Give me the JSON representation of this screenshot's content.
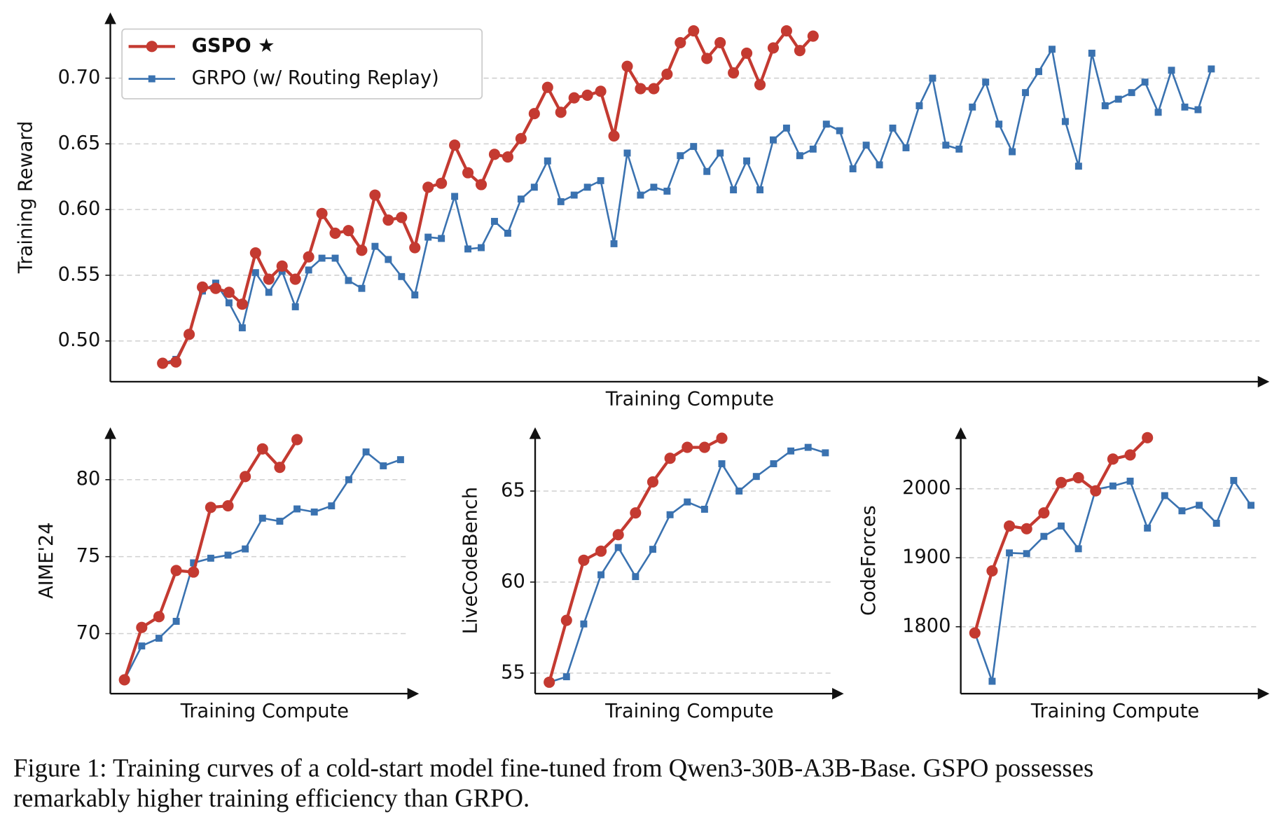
{
  "chart_data": [
    {
      "type": "line",
      "x_label": "Training Compute",
      "y_label": "Training Reward",
      "grid": true,
      "legend": "upper left",
      "ylim": [
        0.469,
        0.75
      ],
      "yticks": [
        {
          "value": 0.5,
          "label": "0.50"
        },
        {
          "value": 0.55,
          "label": "0.55"
        },
        {
          "value": 0.6,
          "label": "0.60"
        },
        {
          "value": 0.65,
          "label": "0.65"
        },
        {
          "value": 0.7,
          "label": "0.70"
        }
      ],
      "series": [
        {
          "name": "GSPO ★",
          "color": "#c43a31",
          "marker": "circle",
          "values": [
            0.483,
            0.484,
            0.505,
            0.541,
            0.54,
            0.537,
            0.528,
            0.567,
            0.547,
            0.557,
            0.547,
            0.564,
            0.597,
            0.582,
            0.584,
            0.569,
            0.611,
            0.592,
            0.594,
            0.571,
            0.617,
            0.62,
            0.649,
            0.628,
            0.619,
            0.642,
            0.64,
            0.654,
            0.673,
            0.693,
            0.674,
            0.685,
            0.687,
            0.69,
            0.656,
            0.709,
            0.692,
            0.692,
            0.703,
            0.727,
            0.736,
            0.715,
            0.727,
            0.704,
            0.719,
            0.695,
            0.723,
            0.736,
            0.721,
            0.732
          ]
        },
        {
          "name": "GRPO (w/ Routing Replay)",
          "color": "#3a72b0",
          "marker": "square",
          "values": [
            0.483,
            0.486,
            0.505,
            0.538,
            0.544,
            0.529,
            0.51,
            0.552,
            0.537,
            0.553,
            0.526,
            0.554,
            0.563,
            0.563,
            0.546,
            0.54,
            0.572,
            0.562,
            0.549,
            0.535,
            0.579,
            0.578,
            0.61,
            0.57,
            0.571,
            0.591,
            0.582,
            0.608,
            0.617,
            0.637,
            0.606,
            0.611,
            0.617,
            0.622,
            0.574,
            0.643,
            0.611,
            0.617,
            0.614,
            0.641,
            0.648,
            0.629,
            0.643,
            0.615,
            0.637,
            0.615,
            0.653,
            0.662,
            0.641,
            0.646,
            0.665,
            0.66,
            0.631,
            0.649,
            0.634,
            0.662,
            0.647,
            0.679,
            0.7,
            0.649,
            0.646,
            0.678,
            0.697,
            0.665,
            0.644,
            0.689,
            0.705,
            0.722,
            0.667,
            0.633,
            0.719,
            0.679,
            0.684,
            0.689,
            0.697,
            0.674,
            0.706,
            0.678,
            0.676,
            0.707
          ]
        }
      ]
    },
    {
      "type": "line",
      "x_label": "Training Compute",
      "y_label": "AIME'24",
      "grid": true,
      "ylim": [
        66.1,
        83.4
      ],
      "yticks": [
        70,
        75,
        80
      ],
      "series": [
        {
          "color": "#c43a31",
          "marker": "circle",
          "values": [
            67.0,
            70.4,
            71.1,
            74.1,
            74.0,
            78.2,
            78.3,
            80.2,
            82.0,
            80.8,
            82.6
          ]
        },
        {
          "color": "#3a72b0",
          "marker": "square",
          "values": [
            67.0,
            69.2,
            69.7,
            70.8,
            74.6,
            74.9,
            75.1,
            75.5,
            77.5,
            77.3,
            78.1,
            77.9,
            78.3,
            80.0,
            81.8,
            80.9,
            81.3
          ]
        }
      ]
    },
    {
      "type": "line",
      "x_label": "Training Compute",
      "y_label": "LiveCodeBench",
      "grid": true,
      "ylim": [
        53.87,
        68.5
      ],
      "yticks": [
        55,
        60,
        65
      ],
      "series": [
        {
          "color": "#c43a31",
          "marker": "circle",
          "values": [
            54.5,
            57.9,
            61.2,
            61.7,
            62.6,
            63.8,
            65.5,
            66.8,
            67.4,
            67.4,
            67.9
          ]
        },
        {
          "color": "#3a72b0",
          "marker": "square",
          "values": [
            54.5,
            54.8,
            57.7,
            60.4,
            61.9,
            60.3,
            61.8,
            63.7,
            64.4,
            64.0,
            66.5,
            65.0,
            65.8,
            66.5,
            67.2,
            67.4,
            67.1
          ]
        }
      ]
    },
    {
      "type": "line",
      "x_label": "Training Compute",
      "y_label": "CodeForces",
      "grid": true,
      "ylim": [
        1703,
        2089
      ],
      "yticks": [
        1800,
        1900,
        2000
      ],
      "series": [
        {
          "color": "#c43a31",
          "marker": "circle",
          "values": [
            1791,
            1881,
            1946,
            1942,
            1965,
            2009,
            2016,
            1997,
            2043,
            2049,
            2074
          ]
        },
        {
          "color": "#3a72b0",
          "marker": "square",
          "values": [
            1791,
            1721,
            1907,
            1906,
            1931,
            1946,
            1913,
            1999,
            2004,
            2011,
            1943,
            1990,
            1968,
            1976,
            1950,
            2012,
            1976
          ]
        }
      ]
    }
  ],
  "caption": {
    "lines": [
      "Figure 1: Training curves of a cold-start model fine-tuned from Qwen3-30B-A3B-Base. GSPO possesses",
      "remarkably higher training efficiency than GRPO."
    ]
  }
}
